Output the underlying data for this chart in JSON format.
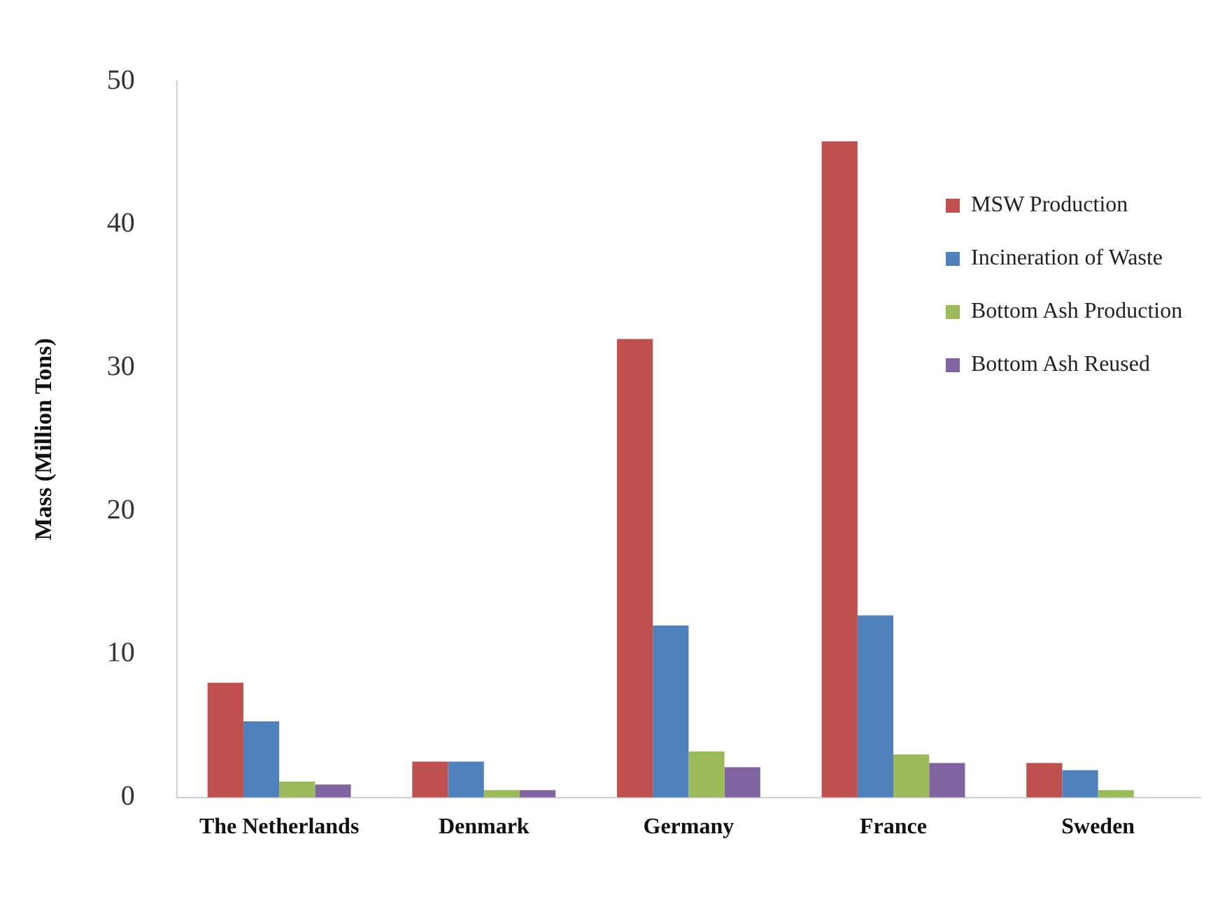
{
  "chart_data": {
    "type": "bar",
    "ylabel": "Mass (Million Tons)",
    "categories": [
      "The Netherlands",
      "Denmark",
      "Germany",
      "France",
      "Sweden"
    ],
    "series": [
      {
        "name": "MSW Production",
        "color": "#c0504d",
        "values": [
          8.0,
          2.5,
          32.0,
          45.8,
          2.4
        ]
      },
      {
        "name": "Incineration of Waste",
        "color": "#4f81bd",
        "values": [
          5.3,
          2.5,
          12.0,
          12.7,
          1.9
        ]
      },
      {
        "name": "Bottom Ash Production",
        "color": "#9bbb59",
        "values": [
          1.1,
          0.5,
          3.2,
          3.0,
          0.5
        ]
      },
      {
        "name": "Bottom Ash Reused",
        "color": "#8064a2",
        "values": [
          0.9,
          0.5,
          2.1,
          2.4,
          null
        ]
      }
    ],
    "ylim": [
      0,
      50
    ],
    "yticks": [
      0,
      10,
      20,
      30,
      40,
      50
    ],
    "grid": false,
    "legend": "top right"
  }
}
